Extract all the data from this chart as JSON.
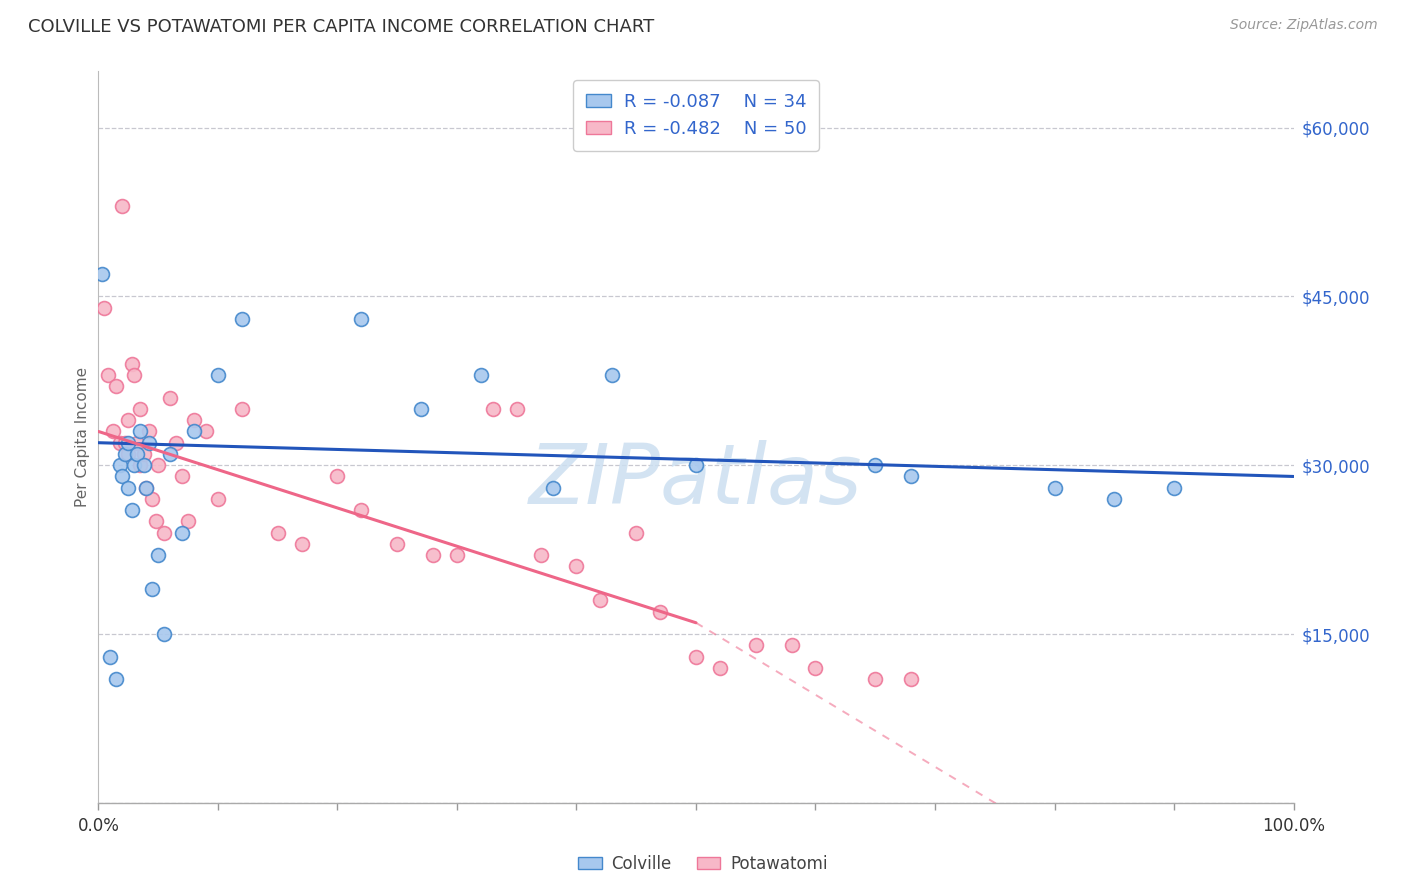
{
  "title": "COLVILLE VS POTAWATOMI PER CAPITA INCOME CORRELATION CHART",
  "source": "Source: ZipAtlas.com",
  "ylabel": "Per Capita Income",
  "xlim": [
    0,
    1
  ],
  "ylim": [
    0,
    65000
  ],
  "yticks": [
    0,
    15000,
    30000,
    45000,
    60000
  ],
  "ytick_labels": [
    "",
    "$15,000",
    "$30,000",
    "$45,000",
    "$60,000"
  ],
  "watermark": "ZIPatlas",
  "legend_colville_r": "-0.087",
  "legend_colville_n": "34",
  "legend_potawatomi_r": "-0.482",
  "legend_potawatomi_n": "50",
  "colville_color": "#A8C8EE",
  "potawatomi_color": "#F7B8C8",
  "colville_edge_color": "#4488CC",
  "potawatomi_edge_color": "#EE7799",
  "colville_line_color": "#2255BB",
  "potawatomi_line_color": "#EE6688",
  "colville_points_x": [
    0.003,
    0.01,
    0.015,
    0.018,
    0.02,
    0.022,
    0.025,
    0.025,
    0.028,
    0.03,
    0.032,
    0.035,
    0.038,
    0.04,
    0.042,
    0.045,
    0.05,
    0.055,
    0.06,
    0.07,
    0.08,
    0.1,
    0.12,
    0.22,
    0.27,
    0.32,
    0.38,
    0.43,
    0.5,
    0.65,
    0.68,
    0.8,
    0.85,
    0.9
  ],
  "colville_points_y": [
    47000,
    13000,
    11000,
    30000,
    29000,
    31000,
    28000,
    32000,
    26000,
    30000,
    31000,
    33000,
    30000,
    28000,
    32000,
    19000,
    22000,
    15000,
    31000,
    24000,
    33000,
    38000,
    43000,
    43000,
    35000,
    38000,
    28000,
    38000,
    30000,
    30000,
    29000,
    28000,
    27000,
    28000
  ],
  "potawatomi_points_x": [
    0.005,
    0.008,
    0.012,
    0.015,
    0.018,
    0.02,
    0.022,
    0.025,
    0.025,
    0.028,
    0.03,
    0.032,
    0.035,
    0.035,
    0.038,
    0.04,
    0.042,
    0.045,
    0.048,
    0.05,
    0.055,
    0.06,
    0.065,
    0.07,
    0.075,
    0.08,
    0.09,
    0.1,
    0.12,
    0.15,
    0.17,
    0.2,
    0.22,
    0.25,
    0.28,
    0.3,
    0.33,
    0.35,
    0.37,
    0.4,
    0.42,
    0.45,
    0.47,
    0.5,
    0.52,
    0.55,
    0.58,
    0.6,
    0.65,
    0.68
  ],
  "potawatomi_points_y": [
    44000,
    38000,
    33000,
    37000,
    32000,
    53000,
    32000,
    34000,
    31000,
    39000,
    38000,
    32000,
    30000,
    35000,
    31000,
    28000,
    33000,
    27000,
    25000,
    30000,
    24000,
    36000,
    32000,
    29000,
    25000,
    34000,
    33000,
    27000,
    35000,
    24000,
    23000,
    29000,
    26000,
    23000,
    22000,
    22000,
    35000,
    35000,
    22000,
    21000,
    18000,
    24000,
    17000,
    13000,
    12000,
    14000,
    14000,
    12000,
    11000,
    11000
  ],
  "colville_trend": [
    0.0,
    1.0,
    32000,
    29000
  ],
  "potawatomi_solid": [
    0.0,
    0.5,
    33000,
    16000
  ],
  "potawatomi_dash": [
    0.5,
    1.0,
    16000,
    -16000
  ],
  "background_color": "#FFFFFF",
  "grid_color": "#C8C8D0",
  "title_color": "#333333",
  "axis_label_color": "#3366CC",
  "marker_size": 100,
  "xtick_positions": [
    0.0,
    0.1,
    0.2,
    0.3,
    0.4,
    0.5,
    0.6,
    0.7,
    0.8,
    0.9,
    1.0
  ]
}
